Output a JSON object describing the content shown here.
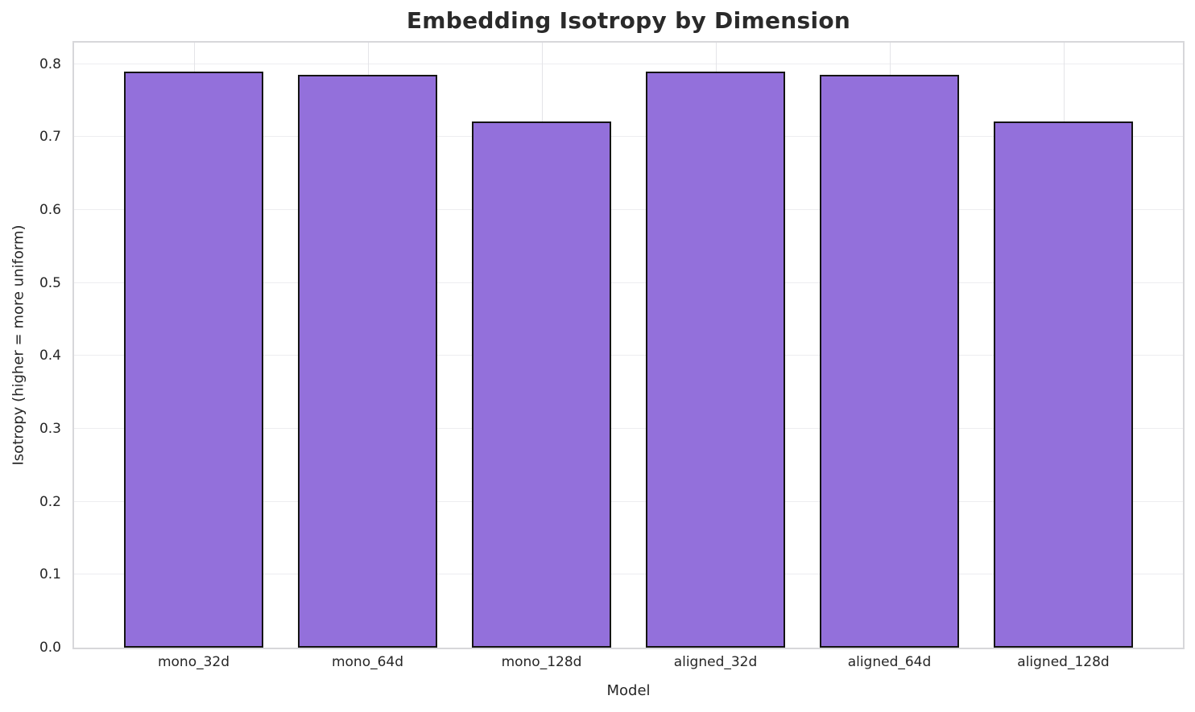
{
  "chart_data": {
    "type": "bar",
    "title": "Embedding Isotropy by Dimension",
    "xlabel": "Model",
    "ylabel": "Isotropy (higher = more uniform)",
    "categories": [
      "mono_32d",
      "mono_64d",
      "mono_128d",
      "aligned_32d",
      "aligned_64d",
      "aligned_128d"
    ],
    "values": [
      0.79,
      0.785,
      0.721,
      0.79,
      0.785,
      0.721
    ],
    "ylim": [
      0,
      0.8295
    ],
    "yticks": [
      0.0,
      0.1,
      0.2,
      0.3,
      0.4,
      0.5,
      0.6,
      0.7,
      0.8
    ],
    "ytick_labels": [
      "0.0",
      "0.1",
      "0.2",
      "0.3",
      "0.4",
      "0.5",
      "0.6",
      "0.7",
      "0.8"
    ],
    "grid": true,
    "legend": "none",
    "bar_color": "#9370DB",
    "bar_edge_color": "#141414"
  },
  "colors": {
    "background": "#ffffff",
    "grid": "#ededf0",
    "spine": "#d7d7da",
    "text": "#262626",
    "title_text": "#2a2a2a"
  }
}
